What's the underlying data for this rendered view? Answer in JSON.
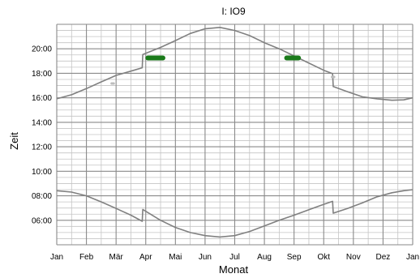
{
  "chart_data": {
    "type": "line",
    "title": "I: IO9",
    "xlabel": "Monat",
    "ylabel": "Zeit",
    "x_ticks": [
      "Jan",
      "Feb",
      "Mär",
      "Apr",
      "Mai",
      "Jun",
      "Jul",
      "Aug",
      "Sep",
      "Okt",
      "Nov",
      "Dez",
      "Jan"
    ],
    "y_ticks": [
      "06:00",
      "08:00",
      "10:00",
      "12:00",
      "14:00",
      "16:00",
      "18:00",
      "20:00"
    ],
    "xlim": [
      0,
      12
    ],
    "ylim": [
      "04:00",
      "22:00"
    ],
    "x_unit": "months since 1 Jan",
    "grid": true,
    "legend": "none",
    "series": [
      {
        "color": "#808080",
        "points": [
          [
            0.0,
            "15:55"
          ],
          [
            0.5,
            "16:15"
          ],
          [
            1.0,
            "16:45"
          ],
          [
            1.5,
            "17:18"
          ],
          [
            2.0,
            "17:50"
          ],
          [
            2.6,
            "18:15"
          ],
          [
            2.88,
            "18:27"
          ],
          [
            2.9,
            "19:32"
          ],
          [
            3.5,
            "20:07"
          ],
          [
            4.0,
            "20:40"
          ],
          [
            4.5,
            "21:15"
          ],
          [
            5.0,
            "21:38"
          ],
          [
            5.5,
            "21:45"
          ],
          [
            6.0,
            "21:30"
          ],
          [
            6.5,
            "21:05"
          ],
          [
            7.0,
            "20:30"
          ],
          [
            7.5,
            "20:00"
          ],
          [
            8.0,
            "19:25"
          ],
          [
            8.5,
            "18:50"
          ],
          [
            9.0,
            "18:15"
          ],
          [
            9.3,
            "17:58"
          ],
          [
            9.32,
            "16:55"
          ],
          [
            9.8,
            "16:30"
          ],
          [
            10.3,
            "16:05"
          ],
          [
            10.8,
            "15:55"
          ],
          [
            11.3,
            "15:48"
          ],
          [
            11.7,
            "15:50"
          ],
          [
            12.0,
            "16:00"
          ]
        ]
      },
      {
        "color": "#808080",
        "points": [
          [
            0.0,
            "08:25"
          ],
          [
            0.5,
            "08:18"
          ],
          [
            1.0,
            "08:00"
          ],
          [
            1.5,
            "07:30"
          ],
          [
            2.0,
            "06:58"
          ],
          [
            2.5,
            "06:25"
          ],
          [
            2.88,
            "05:55"
          ],
          [
            2.9,
            "06:53"
          ],
          [
            3.5,
            "06:00"
          ],
          [
            4.0,
            "05:25"
          ],
          [
            4.5,
            "05:00"
          ],
          [
            5.0,
            "04:45"
          ],
          [
            5.5,
            "04:38"
          ],
          [
            6.0,
            "04:45"
          ],
          [
            6.5,
            "05:05"
          ],
          [
            7.0,
            "05:32"
          ],
          [
            7.5,
            "06:00"
          ],
          [
            8.0,
            "06:25"
          ],
          [
            8.5,
            "06:52"
          ],
          [
            9.0,
            "07:18"
          ],
          [
            9.3,
            "07:33"
          ],
          [
            9.32,
            "06:35"
          ],
          [
            9.8,
            "06:58"
          ],
          [
            10.3,
            "07:25"
          ],
          [
            10.8,
            "07:55"
          ],
          [
            11.3,
            "08:15"
          ],
          [
            11.7,
            "08:25"
          ],
          [
            12.0,
            "08:30"
          ]
        ]
      }
    ],
    "marks": [
      {
        "color": "#1a7a1a",
        "x": [
          3.07,
          3.58
        ],
        "y": "19:15"
      },
      {
        "color": "#1a7a1a",
        "x": [
          7.75,
          8.15
        ],
        "y": "19:15"
      },
      {
        "color": "#bdbdbd",
        "x": [
          1.85,
          1.92
        ],
        "y": "17:10"
      },
      {
        "color": "#bdbdbd",
        "x": [
          9.28,
          9.35
        ],
        "y": "17:42"
      }
    ]
  }
}
